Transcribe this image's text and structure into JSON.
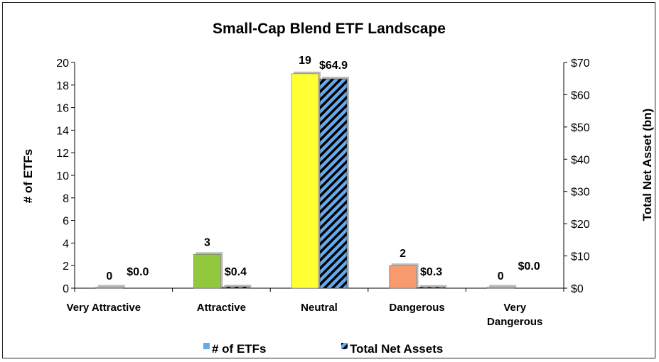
{
  "chart_data": {
    "type": "bar",
    "title": "Small-Cap Blend ETF Landscape",
    "categories": [
      "Very Attractive",
      "Attractive",
      "Neutral",
      "Dangerous",
      "Very Dangerous"
    ],
    "category_display": [
      [
        "Very Attractive"
      ],
      [
        "Attractive"
      ],
      [
        "Neutral"
      ],
      [
        "Dangerous"
      ],
      [
        "Very",
        "Dangerous"
      ]
    ],
    "series": [
      {
        "name": "# of ETFs",
        "axis": "left",
        "values": [
          0,
          3,
          19,
          2,
          0
        ],
        "labels": [
          "0",
          "3",
          "19",
          "2",
          "0"
        ],
        "colors": [
          "#bfbfbf",
          "#92c83e",
          "#ffff33",
          "#f79a6d",
          "#bfbfbf"
        ]
      },
      {
        "name": "Total Net Assets",
        "axis": "right",
        "values": [
          0.0,
          0.4,
          64.9,
          0.3,
          0.0
        ],
        "labels": [
          "$0.0",
          "$0.4",
          "$64.9",
          "$0.3",
          "$0.0"
        ],
        "color": "#66aaee",
        "pattern": "diagonal-stripes-black"
      }
    ],
    "ylabel": "# of ETFs",
    "ylim": [
      0,
      20
    ],
    "yticks": [
      "0",
      "2",
      "4",
      "6",
      "8",
      "10",
      "12",
      "14",
      "16",
      "18",
      "20"
    ],
    "y2label": "Total Net Asset (bn)",
    "y2lim": [
      0,
      70
    ],
    "y2ticks": [
      "$0",
      "$10",
      "$20",
      "$30",
      "$40",
      "$50",
      "$60",
      "$70"
    ],
    "legend_position": "bottom",
    "grid": false
  }
}
